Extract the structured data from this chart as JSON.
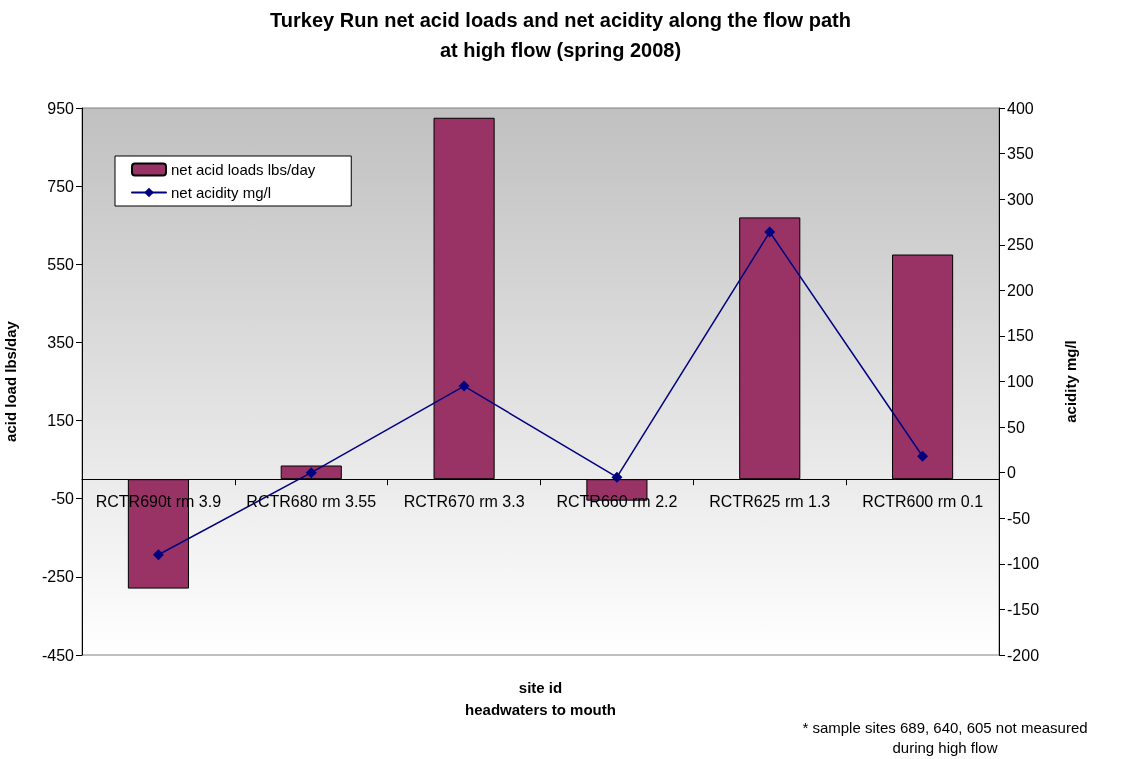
{
  "chart_data": {
    "type": "bar",
    "title": "Turkey Run net acid loads and net acidity along the flow path\nat high flow (spring 2008)",
    "xlabel": "site id\nheadwaters to mouth",
    "ylabel": "acid load lbs/day",
    "y2label": "acidity mg/l",
    "annotations": [
      "* sample sites 689, 640, 605 not measured\nduring high flow"
    ],
    "categories": [
      "RCTR690t rm 3.9",
      "RCTR680 rm 3.55",
      "RCTR670 rm 3.3",
      "RCTR660 rm 2.2",
      "RCTR625 rm 1.3",
      "RCTR600 rm 0.1"
    ],
    "series": [
      {
        "name": "net acid loads lbs/day",
        "color": "#993366",
        "values": [
          -280,
          35,
          925,
          -55,
          670,
          575
        ]
      },
      {
        "name": "net acidity mg/l",
        "type": "line",
        "axis": "y2",
        "color": "#000080",
        "values": [
          -90,
          0,
          95,
          -5,
          264,
          18
        ]
      }
    ],
    "ylim": [
      -450,
      950
    ],
    "yticks": [
      -450,
      -250,
      -50,
      150,
      350,
      550,
      750,
      950
    ],
    "y2lim": [
      -200,
      400
    ],
    "y2ticks": [
      -200,
      -150,
      -100,
      -50,
      0,
      50,
      100,
      150,
      200,
      250,
      300,
      350,
      400
    ],
    "legend": "top left",
    "marker": "diamond"
  }
}
